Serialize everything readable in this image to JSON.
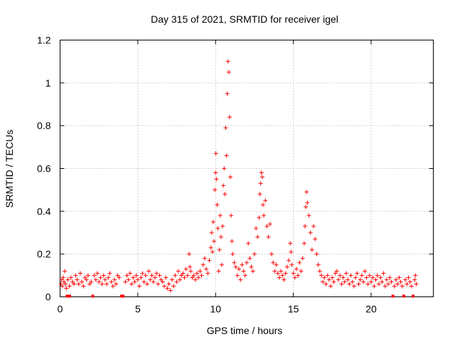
{
  "chart_data": {
    "type": "scatter",
    "title": "Day 315 of 2021, SRMTID for receiver igel",
    "xlabel": "GPS time / hours",
    "ylabel": "SRMTID / TECUs",
    "xlim": [
      0,
      24
    ],
    "ylim": [
      0,
      1.2
    ],
    "grid": true,
    "marker": "+",
    "marker_color": "#ff0000",
    "x_ticks": [
      0,
      5,
      10,
      15,
      20
    ],
    "x_tick_labels": [
      "0",
      "5",
      "10",
      "15",
      "20"
    ],
    "y_ticks": [
      0,
      0.2,
      0.4,
      0.6,
      0.8,
      1.0,
      1.2
    ],
    "y_tick_labels": [
      "0",
      "0.2",
      "0.4",
      "0.6",
      "0.8",
      "1",
      "1.2"
    ],
    "zero_markers_x": [
      0.45,
      0.55,
      0.62,
      2.1,
      3.95,
      4.05,
      21.4,
      22.1,
      22.7
    ],
    "series": [
      {
        "name": "SRMTID",
        "points": [
          [
            0.05,
            0.06
          ],
          [
            0.1,
            0.08
          ],
          [
            0.15,
            0.05
          ],
          [
            0.2,
            0.09
          ],
          [
            0.25,
            0.07
          ],
          [
            0.3,
            0.12
          ],
          [
            0.35,
            0.06
          ],
          [
            0.4,
            0.04
          ],
          [
            0.5,
            0.08
          ],
          [
            0.6,
            0.05
          ],
          [
            0.7,
            0.09
          ],
          [
            0.8,
            0.07
          ],
          [
            0.9,
            0.06
          ],
          [
            1.0,
            0.1
          ],
          [
            1.1,
            0.08
          ],
          [
            1.2,
            0.06
          ],
          [
            1.3,
            0.11
          ],
          [
            1.4,
            0.07
          ],
          [
            1.5,
            0.05
          ],
          [
            1.6,
            0.09
          ],
          [
            1.7,
            0.08
          ],
          [
            1.8,
            0.1
          ],
          [
            1.9,
            0.06
          ],
          [
            2.0,
            0.07
          ],
          [
            2.2,
            0.1
          ],
          [
            2.3,
            0.08
          ],
          [
            2.4,
            0.11
          ],
          [
            2.5,
            0.07
          ],
          [
            2.6,
            0.09
          ],
          [
            2.7,
            0.06
          ],
          [
            2.8,
            0.1
          ],
          [
            2.9,
            0.08
          ],
          [
            3.0,
            0.06
          ],
          [
            3.1,
            0.09
          ],
          [
            3.2,
            0.11
          ],
          [
            3.3,
            0.07
          ],
          [
            3.4,
            0.05
          ],
          [
            3.5,
            0.08
          ],
          [
            3.6,
            0.06
          ],
          [
            3.7,
            0.1
          ],
          [
            3.8,
            0.09
          ],
          [
            4.2,
            0.07
          ],
          [
            4.3,
            0.1
          ],
          [
            4.4,
            0.08
          ],
          [
            4.5,
            0.11
          ],
          [
            4.6,
            0.06
          ],
          [
            4.7,
            0.09
          ],
          [
            4.8,
            0.07
          ],
          [
            4.9,
            0.1
          ],
          [
            5.0,
            0.08
          ],
          [
            5.1,
            0.05
          ],
          [
            5.2,
            0.09
          ],
          [
            5.3,
            0.11
          ],
          [
            5.4,
            0.07
          ],
          [
            5.5,
            0.1
          ],
          [
            5.6,
            0.06
          ],
          [
            5.7,
            0.12
          ],
          [
            5.8,
            0.08
          ],
          [
            5.9,
            0.1
          ],
          [
            6.0,
            0.07
          ],
          [
            6.1,
            0.09
          ],
          [
            6.2,
            0.11
          ],
          [
            6.3,
            0.06
          ],
          [
            6.4,
            0.1
          ],
          [
            6.5,
            0.08
          ],
          [
            6.6,
            0.07
          ],
          [
            6.7,
            0.05
          ],
          [
            6.8,
            0.09
          ],
          [
            6.9,
            0.04
          ],
          [
            7.0,
            0.06
          ],
          [
            7.1,
            0.03
          ],
          [
            7.2,
            0.08
          ],
          [
            7.3,
            0.05
          ],
          [
            7.4,
            0.1
          ],
          [
            7.5,
            0.07
          ],
          [
            7.6,
            0.12
          ],
          [
            7.7,
            0.08
          ],
          [
            7.8,
            0.1
          ],
          [
            7.9,
            0.11
          ],
          [
            8.0,
            0.09
          ],
          [
            8.1,
            0.13
          ],
          [
            8.2,
            0.1
          ],
          [
            8.3,
            0.2
          ],
          [
            8.35,
            0.14
          ],
          [
            8.4,
            0.12
          ],
          [
            8.5,
            0.09
          ],
          [
            8.6,
            0.1
          ],
          [
            8.7,
            0.08
          ],
          [
            8.8,
            0.11
          ],
          [
            8.9,
            0.09
          ],
          [
            9.0,
            0.12
          ],
          [
            9.1,
            0.1
          ],
          [
            9.2,
            0.15
          ],
          [
            9.3,
            0.18
          ],
          [
            9.4,
            0.13
          ],
          [
            9.5,
            0.11
          ],
          [
            9.6,
            0.17
          ],
          [
            9.7,
            0.23
          ],
          [
            9.75,
            0.3
          ],
          [
            9.8,
            0.21
          ],
          [
            9.85,
            0.35
          ],
          [
            9.9,
            0.26
          ],
          [
            9.95,
            0.5
          ],
          [
            10.0,
            0.58
          ],
          [
            10.02,
            0.67
          ],
          [
            10.05,
            0.55
          ],
          [
            10.1,
            0.43
          ],
          [
            10.15,
            0.32
          ],
          [
            10.2,
            0.12
          ],
          [
            10.25,
            0.22
          ],
          [
            10.3,
            0.38
          ],
          [
            10.35,
            0.28
          ],
          [
            10.4,
            0.15
          ],
          [
            10.45,
            0.33
          ],
          [
            10.5,
            0.52
          ],
          [
            10.55,
            0.6
          ],
          [
            10.6,
            0.48
          ],
          [
            10.65,
            0.79
          ],
          [
            10.7,
            0.66
          ],
          [
            10.75,
            0.95
          ],
          [
            10.8,
            1.1
          ],
          [
            10.85,
            1.05
          ],
          [
            10.9,
            0.84
          ],
          [
            10.95,
            0.56
          ],
          [
            11.0,
            0.38
          ],
          [
            11.05,
            0.26
          ],
          [
            11.1,
            0.2
          ],
          [
            11.2,
            0.16
          ],
          [
            11.3,
            0.14
          ],
          [
            11.4,
            0.1
          ],
          [
            11.5,
            0.13
          ],
          [
            11.6,
            0.08
          ],
          [
            11.7,
            0.15
          ],
          [
            11.8,
            0.12
          ],
          [
            11.9,
            0.1
          ],
          [
            12.0,
            0.16
          ],
          [
            12.1,
            0.25
          ],
          [
            12.2,
            0.18
          ],
          [
            12.3,
            0.14
          ],
          [
            12.4,
            0.12
          ],
          [
            12.5,
            0.2
          ],
          [
            12.6,
            0.32
          ],
          [
            12.7,
            0.28
          ],
          [
            12.8,
            0.37
          ],
          [
            12.85,
            0.48
          ],
          [
            12.9,
            0.53
          ],
          [
            12.95,
            0.58
          ],
          [
            13.0,
            0.56
          ],
          [
            13.05,
            0.43
          ],
          [
            13.1,
            0.38
          ],
          [
            13.2,
            0.45
          ],
          [
            13.3,
            0.33
          ],
          [
            13.4,
            0.28
          ],
          [
            13.5,
            0.34
          ],
          [
            13.6,
            0.2
          ],
          [
            13.7,
            0.16
          ],
          [
            13.8,
            0.12
          ],
          [
            13.9,
            0.15
          ],
          [
            14.0,
            0.11
          ],
          [
            14.1,
            0.09
          ],
          [
            14.2,
            0.12
          ],
          [
            14.3,
            0.1
          ],
          [
            14.4,
            0.08
          ],
          [
            14.5,
            0.11
          ],
          [
            14.6,
            0.14
          ],
          [
            14.7,
            0.17
          ],
          [
            14.8,
            0.25
          ],
          [
            14.85,
            0.21
          ],
          [
            14.9,
            0.15
          ],
          [
            15.0,
            0.11
          ],
          [
            15.1,
            0.09
          ],
          [
            15.2,
            0.13
          ],
          [
            15.3,
            0.1
          ],
          [
            15.4,
            0.16
          ],
          [
            15.5,
            0.12
          ],
          [
            15.6,
            0.18
          ],
          [
            15.7,
            0.25
          ],
          [
            15.75,
            0.33
          ],
          [
            15.8,
            0.42
          ],
          [
            15.85,
            0.49
          ],
          [
            15.9,
            0.44
          ],
          [
            16.0,
            0.38
          ],
          [
            16.1,
            0.3
          ],
          [
            16.2,
            0.22
          ],
          [
            16.3,
            0.33
          ],
          [
            16.4,
            0.27
          ],
          [
            16.5,
            0.2
          ],
          [
            16.6,
            0.15
          ],
          [
            16.7,
            0.12
          ],
          [
            16.8,
            0.1
          ],
          [
            16.9,
            0.07
          ],
          [
            17.0,
            0.09
          ],
          [
            17.1,
            0.06
          ],
          [
            17.2,
            0.1
          ],
          [
            17.3,
            0.08
          ],
          [
            17.4,
            0.05
          ],
          [
            17.5,
            0.09
          ],
          [
            17.6,
            0.07
          ],
          [
            17.7,
            0.11
          ],
          [
            17.8,
            0.12
          ],
          [
            17.9,
            0.08
          ],
          [
            18.0,
            0.1
          ],
          [
            18.1,
            0.06
          ],
          [
            18.2,
            0.09
          ],
          [
            18.3,
            0.07
          ],
          [
            18.4,
            0.11
          ],
          [
            18.5,
            0.08
          ],
          [
            18.6,
            0.06
          ],
          [
            18.7,
            0.1
          ],
          [
            18.8,
            0.07
          ],
          [
            18.9,
            0.05
          ],
          [
            19.0,
            0.09
          ],
          [
            19.1,
            0.11
          ],
          [
            19.2,
            0.06
          ],
          [
            19.3,
            0.08
          ],
          [
            19.4,
            0.1
          ],
          [
            19.5,
            0.07
          ],
          [
            19.6,
            0.12
          ],
          [
            19.7,
            0.09
          ],
          [
            19.8,
            0.06
          ],
          [
            19.9,
            0.1
          ],
          [
            20.0,
            0.07
          ],
          [
            20.1,
            0.09
          ],
          [
            20.2,
            0.05
          ],
          [
            20.3,
            0.08
          ],
          [
            20.4,
            0.1
          ],
          [
            20.5,
            0.06
          ],
          [
            20.6,
            0.09
          ],
          [
            20.7,
            0.07
          ],
          [
            20.8,
            0.11
          ],
          [
            20.9,
            0.05
          ],
          [
            21.0,
            0.08
          ],
          [
            21.1,
            0.06
          ],
          [
            21.2,
            0.09
          ],
          [
            21.3,
            0.07
          ],
          [
            21.5,
            0.05
          ],
          [
            21.6,
            0.08
          ],
          [
            21.7,
            0.06
          ],
          [
            21.8,
            0.09
          ],
          [
            21.9,
            0.07
          ],
          [
            22.0,
            0.05
          ],
          [
            22.2,
            0.08
          ],
          [
            22.3,
            0.06
          ],
          [
            22.4,
            0.09
          ],
          [
            22.5,
            0.07
          ],
          [
            22.6,
            0.05
          ],
          [
            22.8,
            0.08
          ],
          [
            22.85,
            0.1
          ],
          [
            22.9,
            0.06
          ]
        ]
      }
    ]
  }
}
